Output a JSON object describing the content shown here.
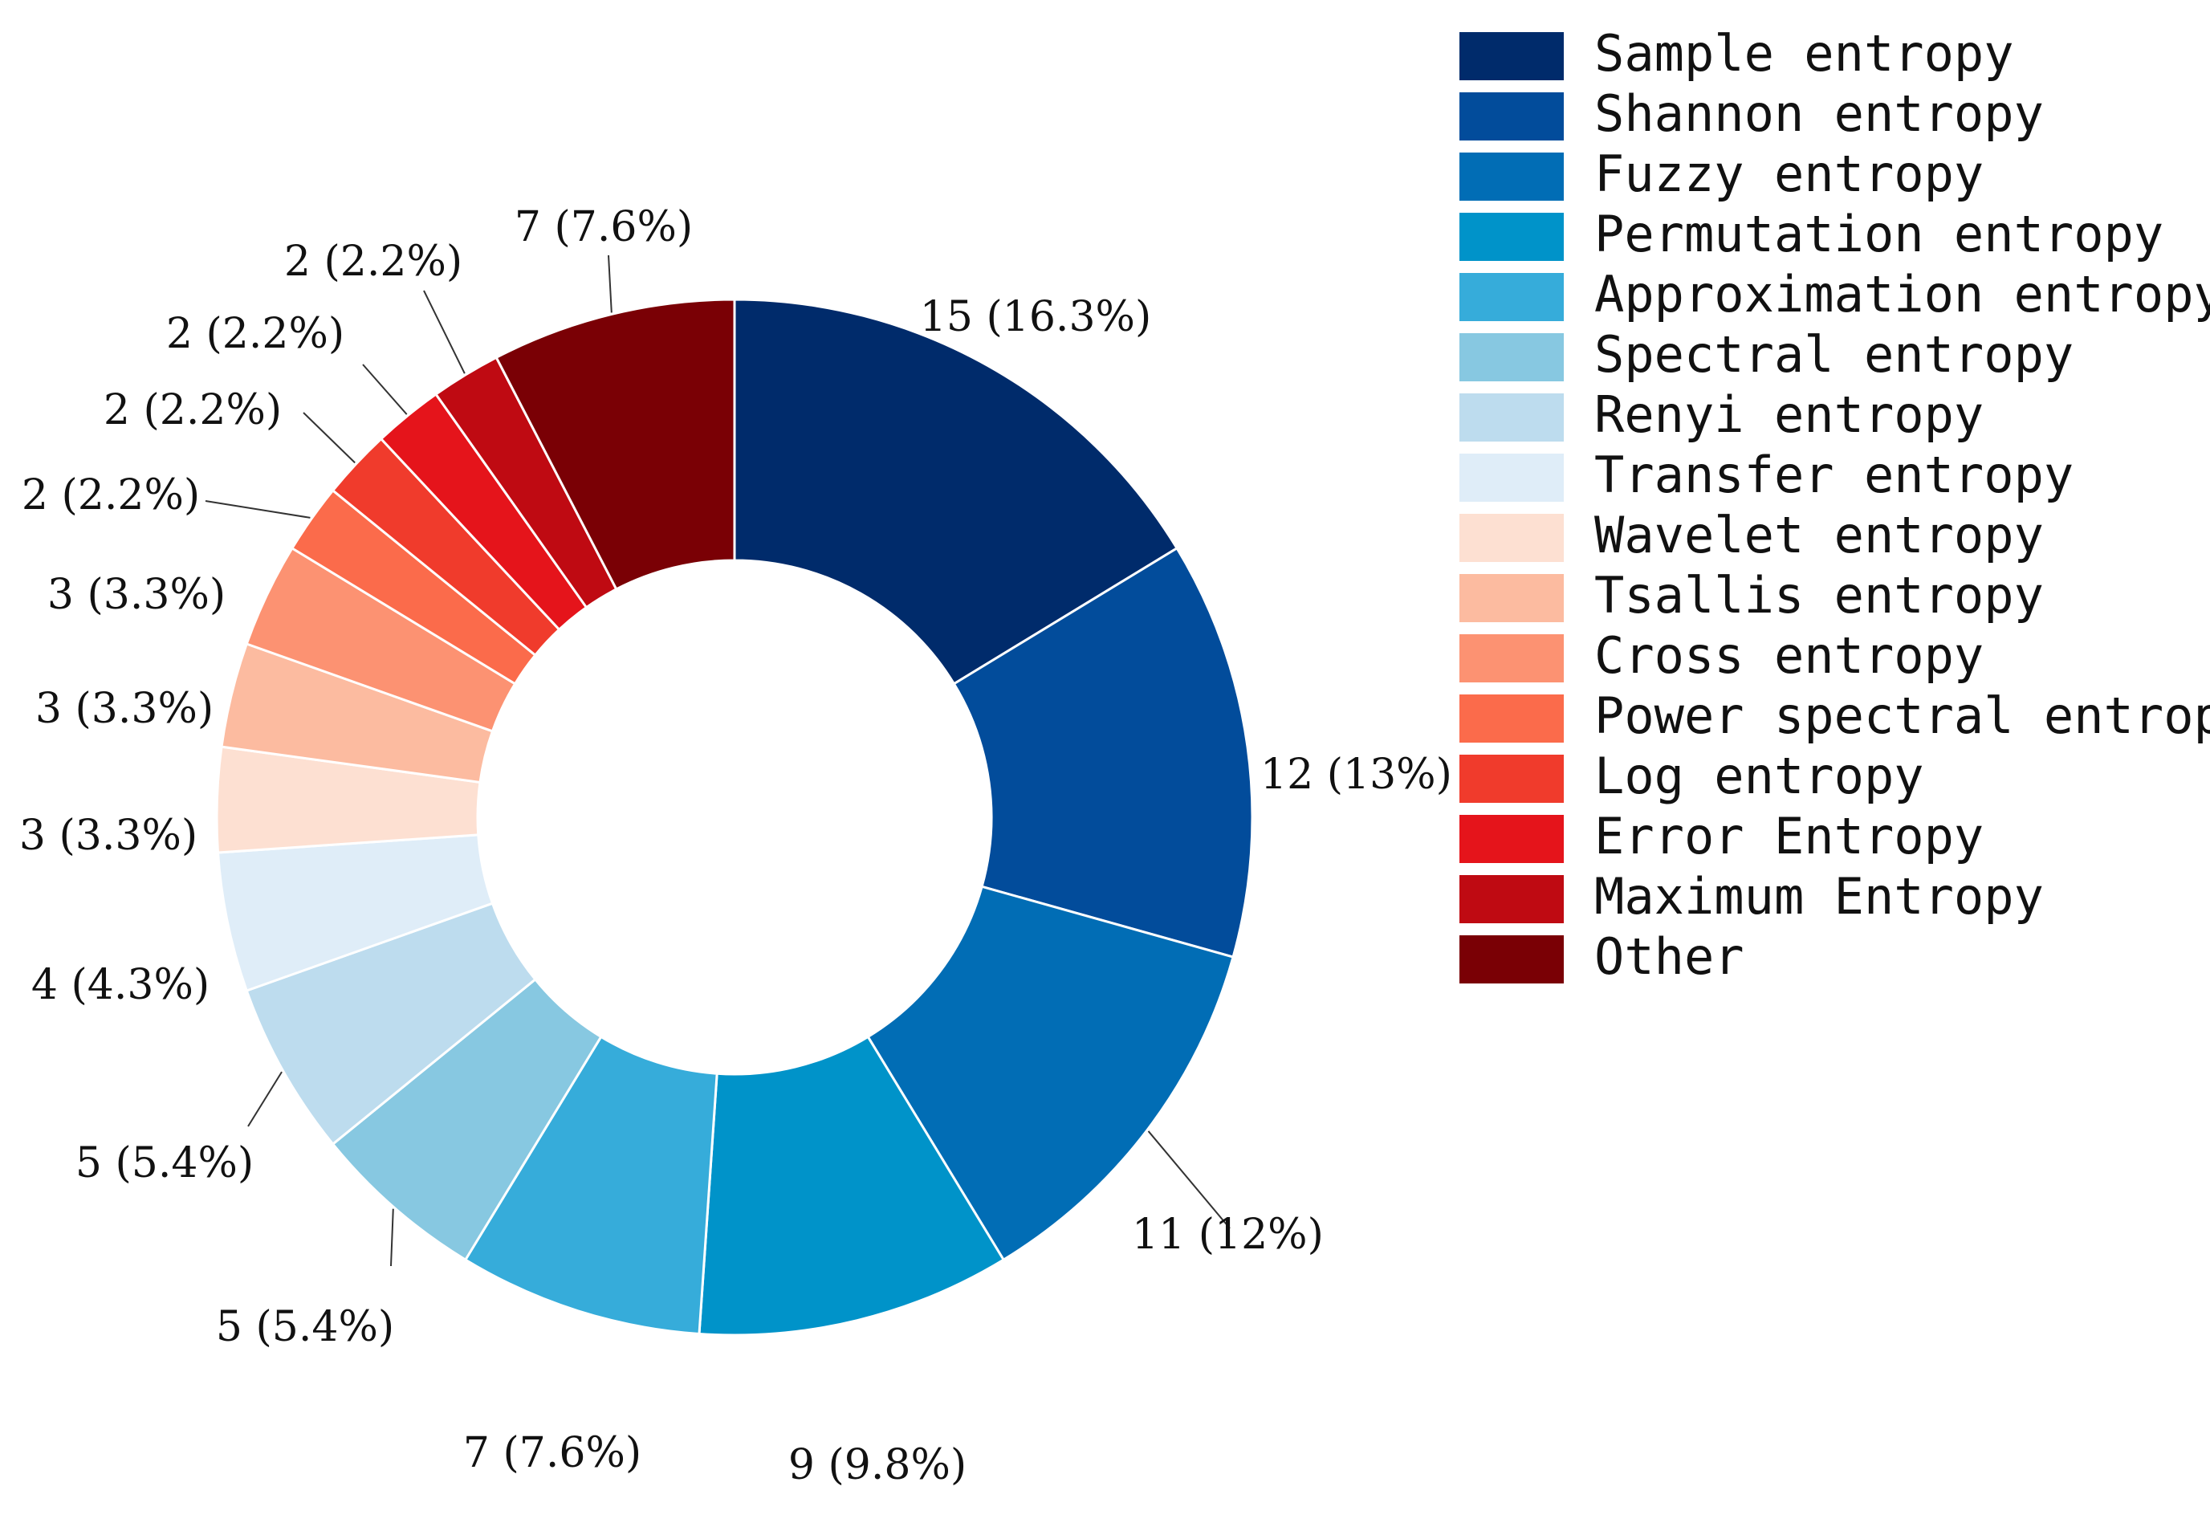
{
  "chart_data": {
    "type": "pie",
    "variant": "donut",
    "legend_position": "right",
    "series": [
      {
        "name": "Sample entropy",
        "value": 15,
        "label": "15 (16.3%)",
        "color": "#002b6b"
      },
      {
        "name": "Shannon entropy",
        "value": 12,
        "label": "12 (13%)",
        "color": "#024c9b"
      },
      {
        "name": "Fuzzy entropy",
        "value": 11,
        "label": "11 (12%)",
        "color": "#016db5"
      },
      {
        "name": "Permutation entropy",
        "value": 9,
        "label": "9 (9.8%)",
        "color": "#0093c9"
      },
      {
        "name": "Approximation entropy",
        "value": 7,
        "label": "7 (7.6%)",
        "color": "#36acda"
      },
      {
        "name": "Spectral entropy",
        "value": 5,
        "label": "5 (5.4%)",
        "color": "#87c8e1"
      },
      {
        "name": "Renyi entropy",
        "value": 5,
        "label": "5 (5.4%)",
        "color": "#bddcee"
      },
      {
        "name": "Transfer entropy",
        "value": 4,
        "label": "4 (4.3%)",
        "color": "#dfedf8"
      },
      {
        "name": "Wavelet entropy",
        "value": 3,
        "label": "3 (3.3%)",
        "color": "#fde0d2"
      },
      {
        "name": "Tsallis entropy",
        "value": 3,
        "label": "3 (3.3%)",
        "color": "#fcbba0"
      },
      {
        "name": "Cross entropy",
        "value": 3,
        "label": "3 (3.3%)",
        "color": "#fc9272"
      },
      {
        "name": "Power spectral entropy",
        "value": 2,
        "label": "2 (2.2%)",
        "color": "#fb6b4b"
      },
      {
        "name": "Log entropy",
        "value": 2,
        "label": "2 (2.2%)",
        "color": "#f03b2c"
      },
      {
        "name": "Error Entropy",
        "value": 2,
        "label": "2 (2.2%)",
        "color": "#e5141b"
      },
      {
        "name": "Maximum Entropy",
        "value": 2,
        "label": "2 (2.2%)",
        "color": "#bf0a12"
      },
      {
        "name": "Other",
        "value": 7,
        "label": "7 (7.6%)",
        "color": "#7a0005"
      }
    ]
  }
}
